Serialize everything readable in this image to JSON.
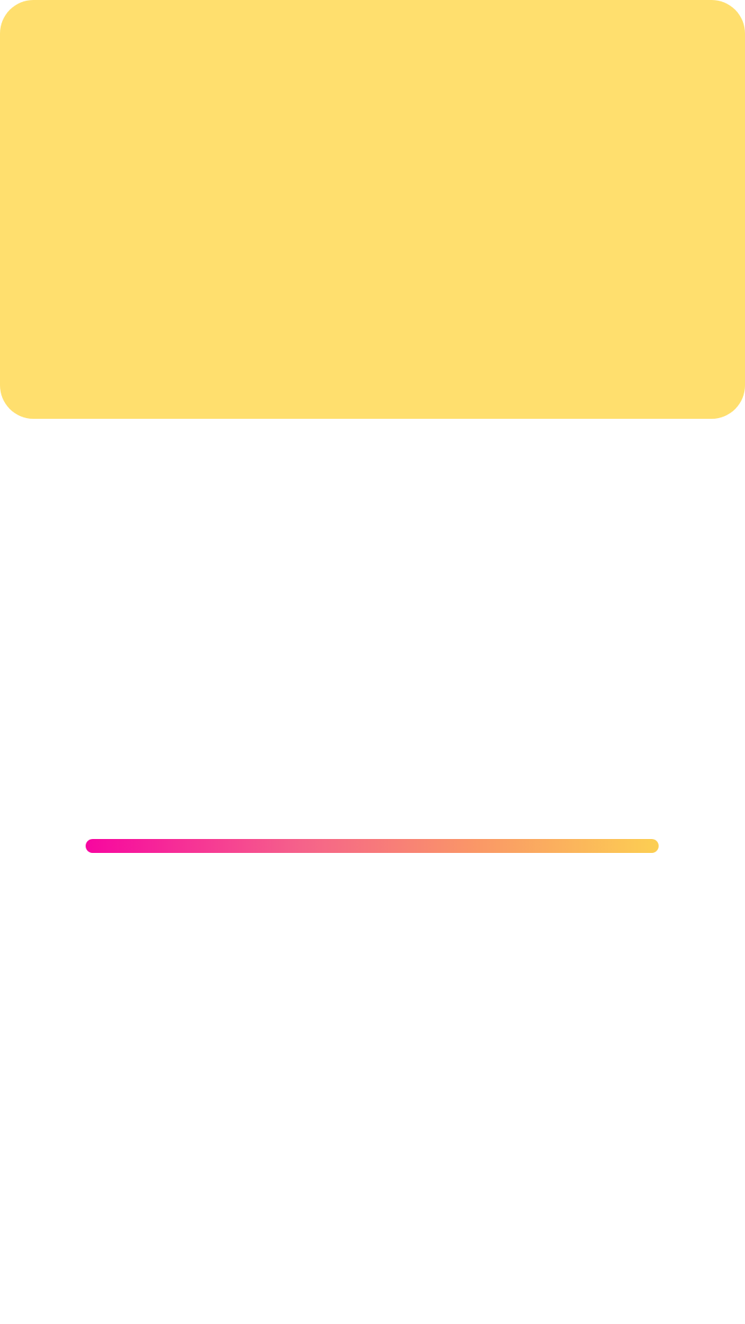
{
  "hero": {
    "background_color": "#FFDF6E"
  },
  "divider": {
    "gradient_colors": [
      "#F706A0",
      "#F5638A",
      "#FA9767",
      "#FCCF52"
    ]
  }
}
